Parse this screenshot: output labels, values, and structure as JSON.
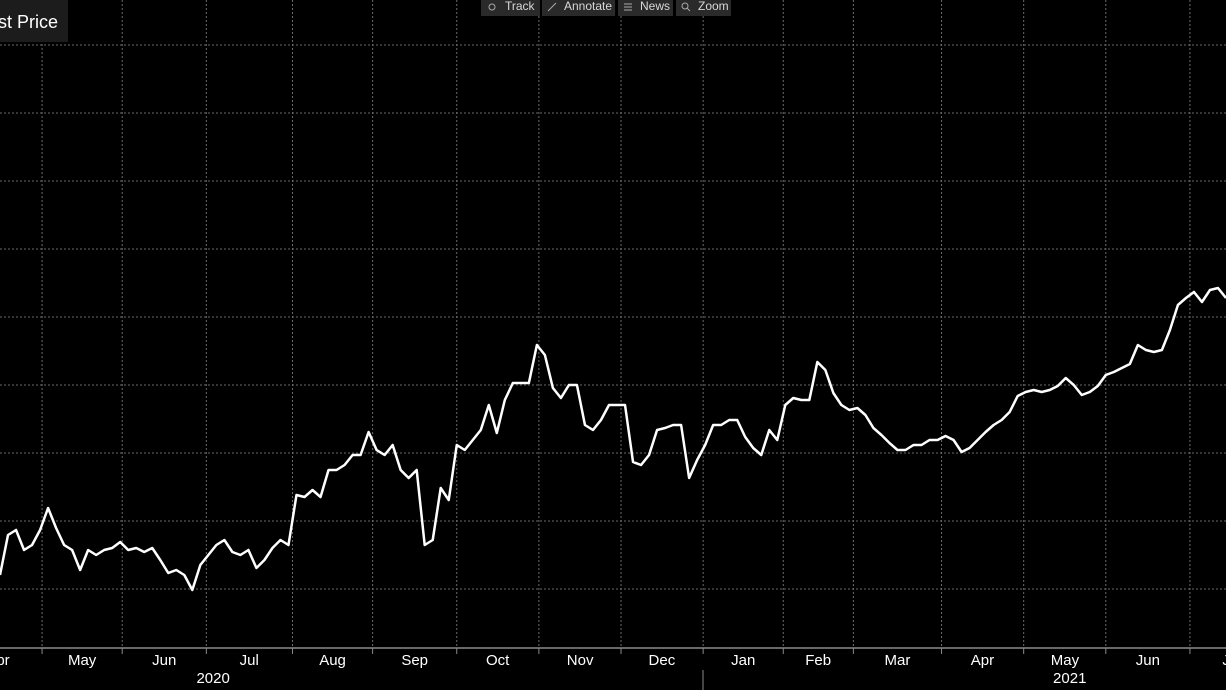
{
  "toolbar": [
    "Track",
    "Annotate",
    "News",
    "Zoom"
  ],
  "chart_data": {
    "type": "line",
    "legend": "Last Price",
    "color": "#ffffff",
    "grid": true,
    "values": [
      82,
      122,
      127,
      107,
      112,
      127,
      149,
      129,
      112,
      107,
      87,
      107,
      102,
      107,
      109,
      115,
      107,
      109,
      105,
      109,
      97,
      84,
      87,
      82,
      67,
      92,
      102,
      112,
      117,
      105,
      102,
      107,
      89,
      97,
      109,
      117,
      112,
      162,
      160,
      167,
      160,
      187,
      187,
      192,
      202,
      202,
      225,
      207,
      202,
      212,
      187,
      179,
      187,
      112,
      117,
      169,
      157,
      212,
      207,
      217,
      227,
      252,
      224,
      257,
      274,
      274,
      274,
      312,
      302,
      269,
      259,
      272,
      272,
      232,
      227,
      237,
      252,
      252,
      252,
      195,
      192,
      202,
      227,
      229,
      232,
      232,
      179,
      197,
      212,
      232,
      232,
      237,
      237,
      220,
      209,
      202,
      227,
      217,
      252,
      259,
      257,
      257,
      295,
      287,
      264,
      252,
      247,
      249,
      242,
      229,
      222,
      214,
      207,
      207,
      212,
      212,
      217,
      217,
      221,
      217,
      205,
      209,
      217,
      225,
      232,
      237,
      245,
      261,
      265,
      267,
      265,
      267,
      271,
      279,
      272,
      262,
      265,
      271,
      282,
      285,
      289,
      293,
      312,
      307,
      305,
      307,
      327,
      352,
      359,
      365,
      355,
      367,
      369,
      359
    ],
    "xlim": [
      0,
      153
    ],
    "xticks": [
      5.25,
      15.25,
      25.75,
      36.5,
      46.5,
      57,
      67.25,
      77.5,
      87.75,
      97.75,
      106.5,
      117.5,
      127.75,
      138,
      148.5
    ],
    "month_labels": [
      {
        "value": -0.25,
        "label": "Apr"
      },
      {
        "value": 10.25,
        "label": "May"
      },
      {
        "value": 20.5,
        "label": "Jun"
      },
      {
        "value": 31.1,
        "label": "Jul"
      },
      {
        "value": 41.5,
        "label": "Aug"
      },
      {
        "value": 51.75,
        "label": "Sep"
      },
      {
        "value": 62.1,
        "label": "Oct"
      },
      {
        "value": 72.4,
        "label": "Nov"
      },
      {
        "value": 82.6,
        "label": "Dec"
      },
      {
        "value": 92.75,
        "label": "Jan"
      },
      {
        "value": 102.1,
        "label": "Feb"
      },
      {
        "value": 112,
        "label": "Mar"
      },
      {
        "value": 122.6,
        "label": "Apr"
      },
      {
        "value": 132.9,
        "label": "May"
      },
      {
        "value": 143.25,
        "label": "Jun"
      },
      {
        "value": 153.75,
        "label": "Jul"
      }
    ],
    "year_labels": [
      {
        "value": 26.6,
        "label": "2020"
      },
      {
        "value": 133.5,
        "label": "2021"
      }
    ],
    "ylim": [
      9,
      657
    ],
    "yticks": [
      68,
      136,
      204,
      272,
      340,
      408,
      476,
      544,
      612
    ]
  }
}
